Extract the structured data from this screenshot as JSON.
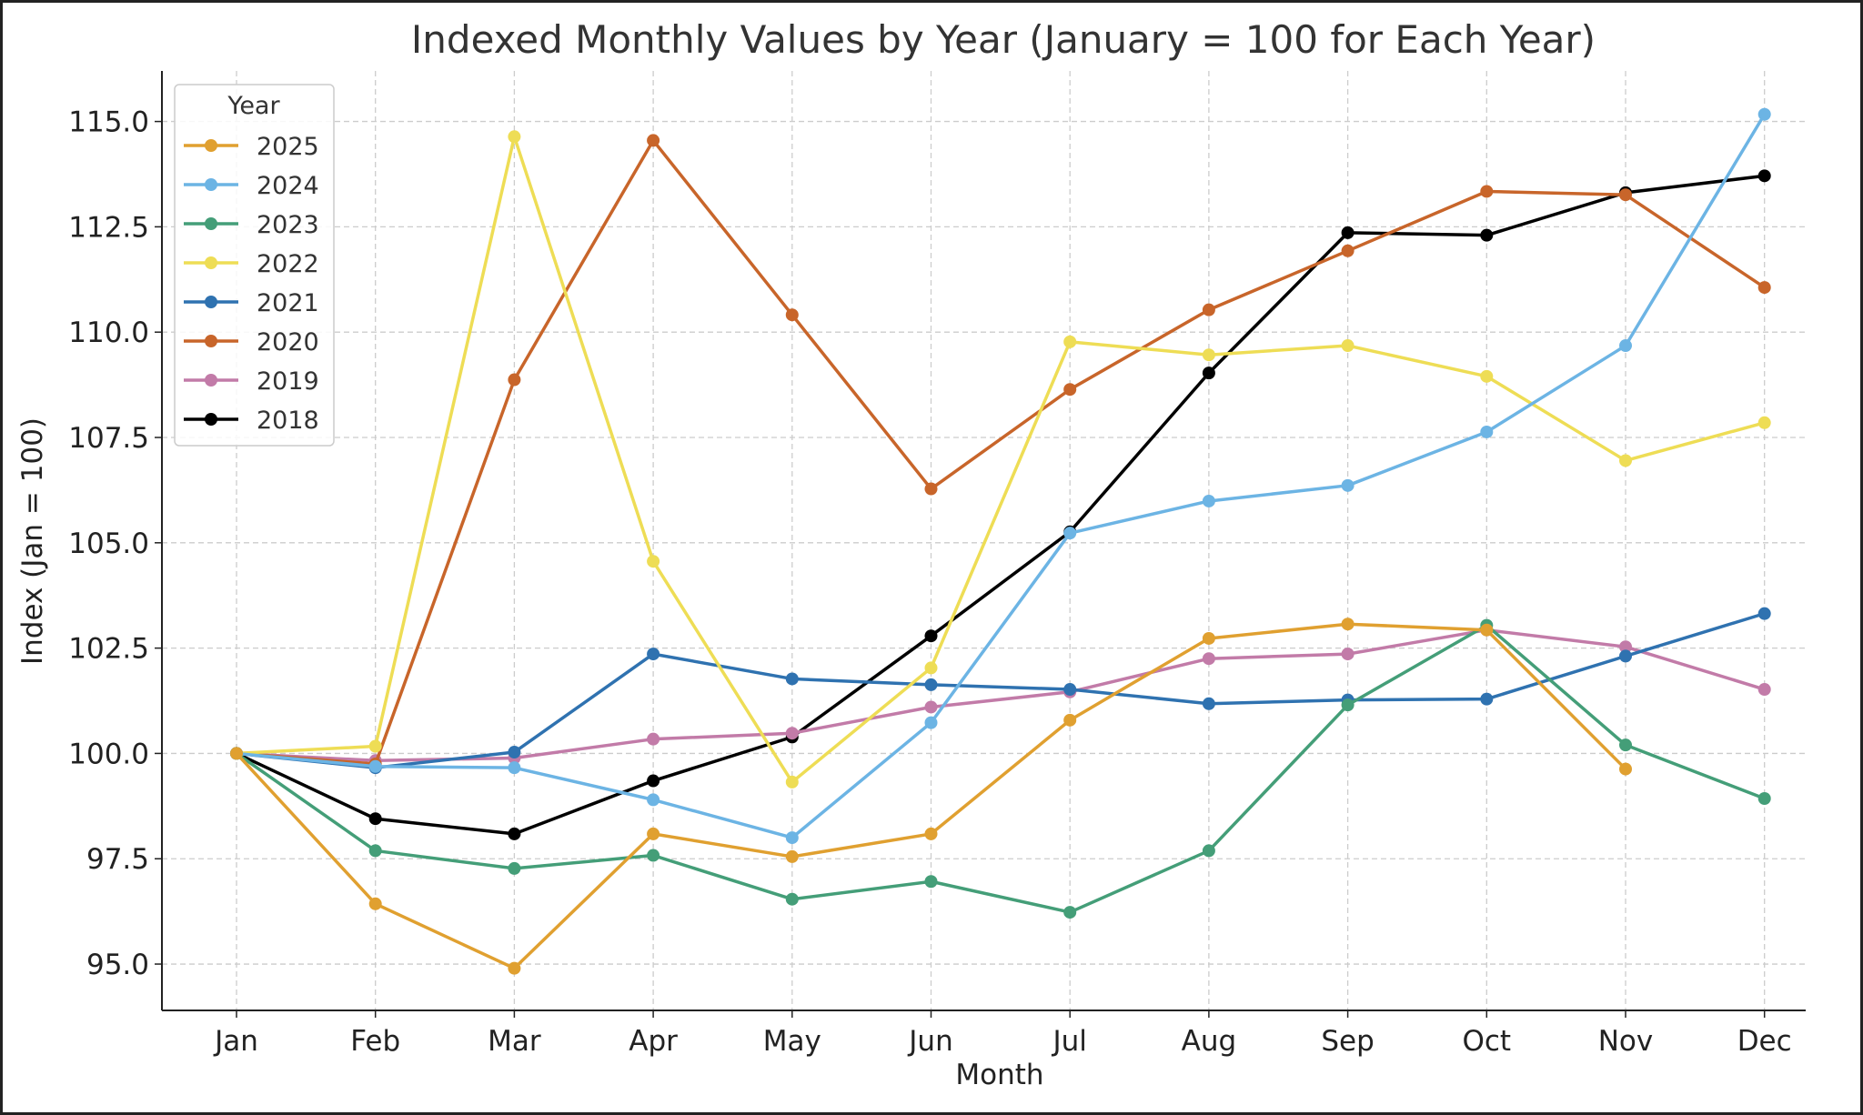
{
  "chart_data": {
    "type": "line",
    "title": "Indexed Monthly Values by Year (January = 100 for Each Year)",
    "xlabel": "Month",
    "ylabel": "Index (Jan = 100)",
    "categories": [
      "Jan",
      "Feb",
      "Mar",
      "Apr",
      "May",
      "Jun",
      "Jul",
      "Aug",
      "Sep",
      "Oct",
      "Nov",
      "Dec"
    ],
    "ylim": [
      93.9,
      116.2
    ],
    "yticks": [
      "95.0",
      "97.5",
      "100.0",
      "102.5",
      "105.0",
      "107.5",
      "110.0",
      "112.5",
      "115.0"
    ],
    "grid": true,
    "legend": {
      "title": "Year",
      "placement": "top-left"
    },
    "series": [
      {
        "name": "2025",
        "color": "#E0A030",
        "values": [
          100,
          96.43,
          94.9,
          98.09,
          97.55,
          98.09,
          100.79,
          102.73,
          103.07,
          102.93,
          99.63,
          null
        ]
      },
      {
        "name": "2024",
        "color": "#6CB4E4",
        "values": [
          100,
          99.69,
          99.66,
          98.9,
          98.0,
          100.73,
          105.23,
          105.99,
          106.36,
          107.63,
          109.68,
          115.17
        ]
      },
      {
        "name": "2023",
        "color": "#449E78",
        "values": [
          100,
          97.69,
          97.27,
          97.58,
          96.54,
          96.96,
          96.23,
          97.69,
          101.15,
          103.04,
          100.2,
          98.93
        ]
      },
      {
        "name": "2022",
        "color": "#EEDD55",
        "values": [
          100,
          100.17,
          114.64,
          104.56,
          99.32,
          102.03,
          109.77,
          109.46,
          109.68,
          108.95,
          106.95,
          107.85
        ]
      },
      {
        "name": "2021",
        "color": "#2F72B0",
        "values": [
          100,
          99.66,
          100.03,
          102.36,
          101.77,
          101.63,
          101.52,
          101.18,
          101.27,
          101.29,
          102.31,
          103.32
        ]
      },
      {
        "name": "2020",
        "color": "#C8652A",
        "values": [
          100,
          99.75,
          108.87,
          114.55,
          110.41,
          106.28,
          108.64,
          110.53,
          111.93,
          113.34,
          113.26,
          111.06
        ]
      },
      {
        "name": "2019",
        "color": "#C27BA8",
        "values": [
          100,
          99.83,
          99.89,
          100.34,
          100.48,
          101.1,
          101.46,
          102.25,
          102.36,
          102.93,
          102.53,
          101.52
        ]
      },
      {
        "name": "2018",
        "color": "#000000",
        "values": [
          100,
          98.45,
          98.09,
          99.35,
          100.39,
          102.79,
          105.26,
          109.03,
          112.36,
          112.3,
          113.31,
          113.71
        ]
      }
    ]
  }
}
